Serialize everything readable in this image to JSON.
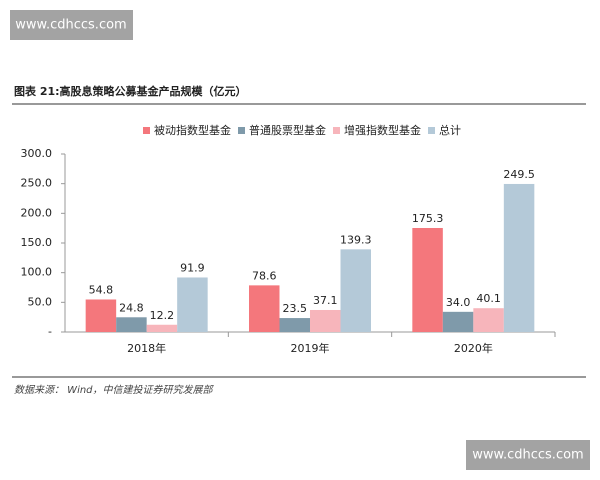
{
  "watermarks": [
    "www.cdhccs.com",
    "www.cdhccs.com"
  ],
  "source": "数据来源： Wind，中信建投证券研究发展部",
  "chart_data": {
    "type": "bar",
    "title": "图表 21:高股息策略公募基金产品规模（亿元）",
    "categories": [
      "2018年",
      "2019年",
      "2020年"
    ],
    "series": [
      {
        "name": "被动指数型基金",
        "color": "#f4777c",
        "values": [
          54.8,
          78.6,
          175.3
        ],
        "value_labels": [
          "54.8",
          "78.6",
          "175.3"
        ]
      },
      {
        "name": "普通股票型基金",
        "color": "#7f9aaa",
        "values": [
          24.8,
          23.5,
          34.0
        ],
        "value_labels": [
          "24.8",
          "23.5",
          "34.0"
        ]
      },
      {
        "name": "增强指数型基金",
        "color": "#f7b5bb",
        "values": [
          12.2,
          37.1,
          40.1
        ],
        "value_labels": [
          "12.2",
          "37.1",
          "40.1"
        ]
      },
      {
        "name": "总计",
        "color": "#b4c9d8",
        "values": [
          91.9,
          139.3,
          249.5
        ],
        "value_labels": [
          "91.9",
          "139.3",
          "249.5"
        ]
      }
    ],
    "ylim": [
      0,
      300
    ],
    "yticks": [
      {
        "value": 0,
        "label": "-"
      },
      {
        "value": 50,
        "label": "50.0"
      },
      {
        "value": 100,
        "label": "100.0"
      },
      {
        "value": 150,
        "label": "150.0"
      },
      {
        "value": 200,
        "label": "200.0"
      },
      {
        "value": 250,
        "label": "250.0"
      },
      {
        "value": 300,
        "label": "300.0"
      }
    ],
    "grid": false,
    "legend": "top"
  }
}
